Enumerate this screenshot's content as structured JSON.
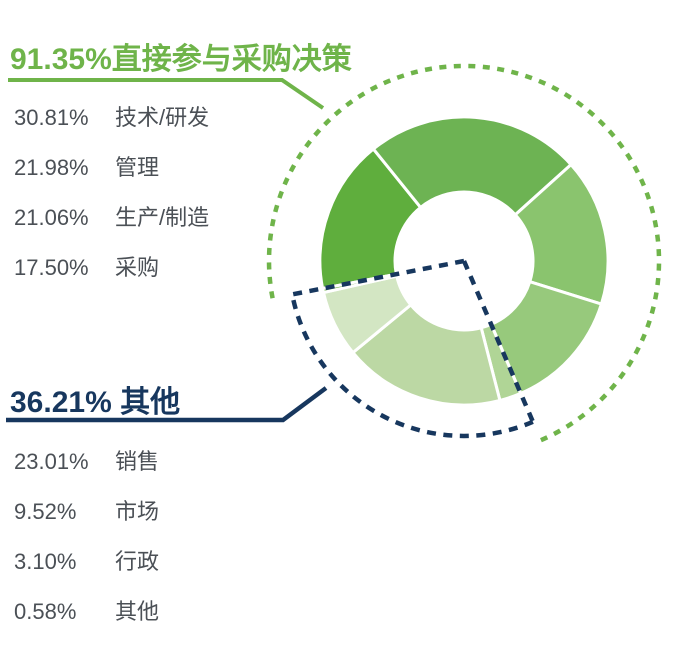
{
  "groups": [
    {
      "id": "direct-purchase-decision",
      "headline": "91.35%直接参与采购决策",
      "total": "91.35%",
      "color": "#6fb44a",
      "items": [
        {
          "value": "30.81%",
          "label": "技术/研发"
        },
        {
          "value": "21.98%",
          "label": "管理"
        },
        {
          "value": "21.06%",
          "label": "生产/制造"
        },
        {
          "value": "17.50%",
          "label": "采购"
        }
      ]
    },
    {
      "id": "others",
      "headline": "36.21% 其他",
      "total": "36.21%",
      "color": "#17375e",
      "items": [
        {
          "value": "23.01%",
          "label": "销售"
        },
        {
          "value": "9.52%",
          "label": "市场"
        },
        {
          "value": "3.10%",
          "label": "行政"
        },
        {
          "value": "0.58%",
          "label": "其他"
        }
      ]
    }
  ],
  "chart_data": {
    "type": "donut",
    "title": "",
    "unit": "%",
    "note": "segment angles are proportional to value / sum(all values); order is clockwise draw order starting at start_angle_deg (clockwise from 12 o'clock)",
    "start_angle_deg": 259,
    "center": [
      464,
      261
    ],
    "outer_radius": 144,
    "inner_radius": 69,
    "segment_gap_color": "#ffffff",
    "segments": [
      {
        "label": "管理",
        "value": 21.98,
        "color": "#5fae3d",
        "group": "直接参与采购决策"
      },
      {
        "label": "技术/研发",
        "value": 30.81,
        "color": "#6db353",
        "group": "直接参与采购决策"
      },
      {
        "label": "生产/制造",
        "value": 21.06,
        "color": "#8ac46e",
        "group": "直接参与采购决策"
      },
      {
        "label": "采购",
        "value": 17.5,
        "color": "#97c97c",
        "group": "直接参与采购决策"
      },
      {
        "label": "行政",
        "value": 3.1,
        "color": "#b0d596",
        "group": "其他"
      },
      {
        "label": "销售",
        "value": 23.01,
        "color": "#bcd8a4",
        "group": "其他"
      },
      {
        "label": "市场",
        "value": 9.52,
        "color": "#d3e6c3",
        "group": "其他"
      },
      {
        "label": "其他",
        "value": 0.58,
        "color": "#77b651",
        "group": "其他"
      }
    ],
    "group_totals": [
      {
        "label": "直接参与采购决策",
        "value": 91.35,
        "color": "#6fb44a"
      },
      {
        "label": "其他",
        "value": 36.21,
        "color": "#17375e"
      }
    ],
    "annotations": {
      "green_dashed_arc": {
        "radius": 195,
        "from_deg": 259,
        "to_deg": 156.8,
        "color": "#6fb44a",
        "dash": "7 7.5",
        "width": 4.5
      },
      "blue_dashed_wedge": {
        "radius": 175,
        "from_deg": 156.8,
        "to_deg": 259,
        "color": "#17375e",
        "dash": "9 7.5",
        "width": 4.5,
        "radial_lines": true
      }
    }
  }
}
